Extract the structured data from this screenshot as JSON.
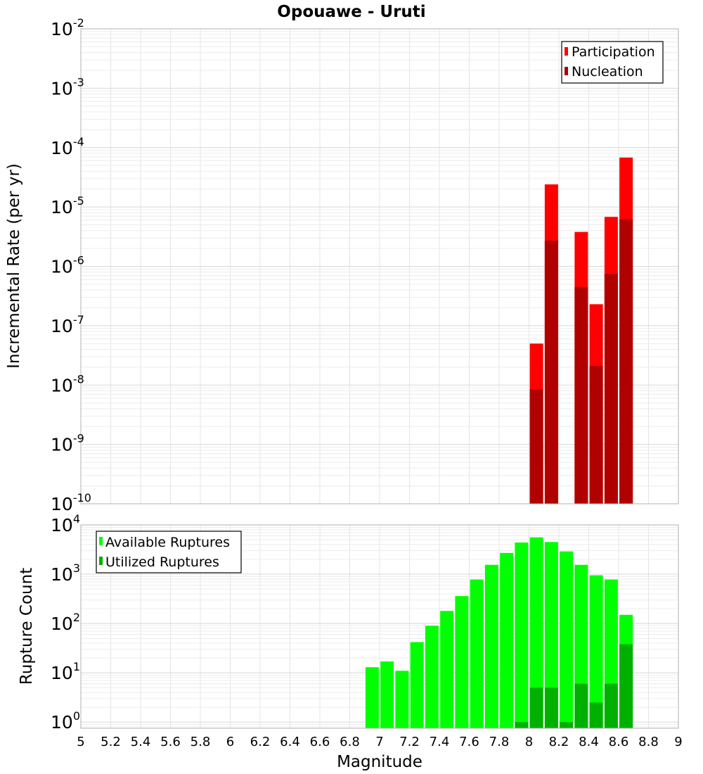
{
  "chart_data": [
    {
      "type": "bar",
      "title": "Opouawe - Uruti",
      "xlabel": "",
      "ylabel": "Incremental Rate (per yr)",
      "yscale": "log",
      "ylim": [
        1e-10,
        0.01
      ],
      "xlim": [
        5,
        9
      ],
      "legend_position": "top-right",
      "series": [
        {
          "name": "Participation",
          "color": "#ff0000",
          "x": [
            8.05,
            8.15,
            8.35,
            8.45,
            8.55,
            8.65
          ],
          "values": [
            5e-08,
            2.4e-05,
            3.8e-06,
            2.3e-07,
            6.8e-06,
            6.8e-05
          ]
        },
        {
          "name": "Nucleation",
          "color": "#b00000",
          "x": [
            8.05,
            8.15,
            8.35,
            8.45,
            8.55,
            8.65
          ],
          "values": [
            8.5e-09,
            2.7e-06,
            4.5e-07,
            2.1e-08,
            7.5e-07,
            6.2e-06
          ]
        }
      ]
    },
    {
      "type": "bar",
      "title": "",
      "xlabel": "Magnitude",
      "ylabel": "Rupture Count",
      "yscale": "log",
      "ylim": [
        0.75,
        10000
      ],
      "xlim": [
        5,
        9
      ],
      "legend_position": "top-left",
      "xticks": [
        "5",
        "5.2",
        "5.4",
        "5.6",
        "5.8",
        "6",
        "6.2",
        "6.4",
        "6.6",
        "6.8",
        "7",
        "7.2",
        "7.4",
        "7.6",
        "7.8",
        "8",
        "8.2",
        "8.4",
        "8.6",
        "8.8",
        "9"
      ],
      "series": [
        {
          "name": "Available Ruptures",
          "color": "#00ff00",
          "x": [
            6.95,
            7.05,
            7.15,
            7.25,
            7.35,
            7.45,
            7.55,
            7.65,
            7.75,
            7.85,
            7.95,
            8.05,
            8.15,
            8.25,
            8.35,
            8.45,
            8.55,
            8.65
          ],
          "values": [
            13,
            17,
            11,
            42,
            90,
            180,
            360,
            780,
            1550,
            2700,
            4400,
            5600,
            4500,
            2900,
            1550,
            950,
            780,
            150
          ]
        },
        {
          "name": "Utilized Ruptures",
          "color": "#00b000",
          "x": [
            7.95,
            8.05,
            8.15,
            8.25,
            8.35,
            8.45,
            8.55,
            8.65
          ],
          "values": [
            1,
            5,
            5,
            1,
            6,
            2.5,
            6,
            38
          ]
        }
      ]
    }
  ],
  "yticks_top": [
    {
      "base": "10",
      "exp": "-2"
    },
    {
      "base": "10",
      "exp": "-3"
    },
    {
      "base": "10",
      "exp": "-4"
    },
    {
      "base": "10",
      "exp": "-5"
    },
    {
      "base": "10",
      "exp": "-6"
    },
    {
      "base": "10",
      "exp": "-7"
    },
    {
      "base": "10",
      "exp": "-8"
    },
    {
      "base": "10",
      "exp": "-9"
    },
    {
      "base": "10",
      "exp": "-10"
    }
  ],
  "yticks_bottom": [
    {
      "base": "10",
      "exp": "4"
    },
    {
      "base": "10",
      "exp": "3"
    },
    {
      "base": "10",
      "exp": "2"
    },
    {
      "base": "10",
      "exp": "1"
    },
    {
      "base": "10",
      "exp": "0"
    }
  ]
}
